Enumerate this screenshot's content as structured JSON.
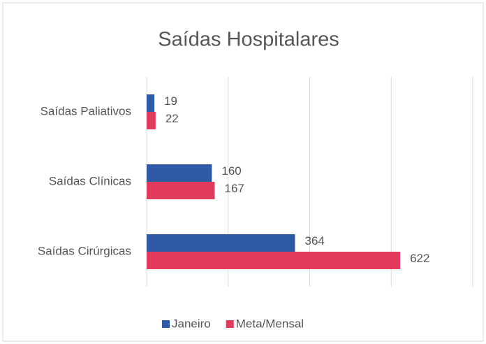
{
  "chart_data": {
    "type": "bar",
    "orientation": "horizontal",
    "title": "Saídas Hospitalares",
    "categories": [
      "Saídas Paliativos",
      "Saídas Clínicas",
      "Saídas Cirúrgicas"
    ],
    "series": [
      {
        "name": "Janeiro",
        "color": "#2f5aa8",
        "values": [
          19,
          160,
          364
        ]
      },
      {
        "name": "Meta/Mensal",
        "color": "#e03a5c",
        "values": [
          22,
          167,
          622
        ]
      }
    ],
    "xlim": [
      0,
      800
    ],
    "xticks": [
      0,
      200,
      400,
      600,
      800
    ],
    "grid": true,
    "legend": "bottom"
  }
}
